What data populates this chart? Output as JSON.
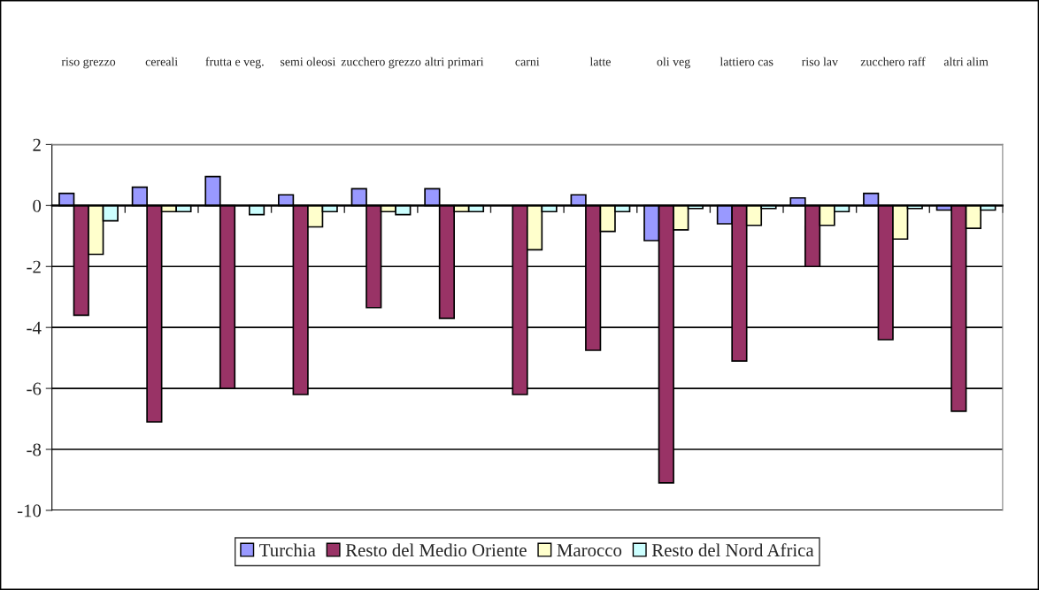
{
  "chart_data": {
    "type": "bar",
    "categories": [
      "riso grezzo",
      "cereali",
      "frutta e veg.",
      "semi oleosi",
      "zucchero grezzo",
      "altri primari",
      "carni",
      "latte",
      "oli veg",
      "lattiero cas",
      "riso lav",
      "zucchero raff",
      "altri alim"
    ],
    "series": [
      {
        "name": "Turchia",
        "color": "#9999ff",
        "values": [
          0.4,
          0.6,
          0.95,
          0.35,
          0.55,
          0.55,
          null,
          0.35,
          -1.15,
          -0.6,
          0.25,
          0.4,
          -0.15
        ]
      },
      {
        "name": "Resto del Medio Oriente",
        "color": "#993366",
        "values": [
          -3.6,
          -7.1,
          -6.0,
          -6.2,
          -3.35,
          -3.7,
          -6.2,
          -4.75,
          -9.1,
          -5.1,
          -2.0,
          -4.4,
          -6.75
        ]
      },
      {
        "name": "Marocco",
        "color": "#ffffcc",
        "values": [
          -1.6,
          -0.2,
          null,
          -0.7,
          -0.2,
          -0.2,
          -1.45,
          -0.85,
          -0.8,
          -0.65,
          -0.65,
          -1.1,
          -0.75
        ]
      },
      {
        "name": "Resto del Nord Africa",
        "color": "#ccffff",
        "values": [
          -0.5,
          -0.2,
          -0.3,
          -0.2,
          -0.3,
          -0.2,
          -0.2,
          -0.2,
          -0.1,
          -0.1,
          -0.2,
          -0.1,
          -0.15
        ]
      }
    ],
    "ylim": [
      -10,
      2
    ],
    "yticks": [
      -10,
      -8,
      -6,
      -4,
      -2,
      0,
      2
    ],
    "grid": "y",
    "legend": "bottom"
  }
}
